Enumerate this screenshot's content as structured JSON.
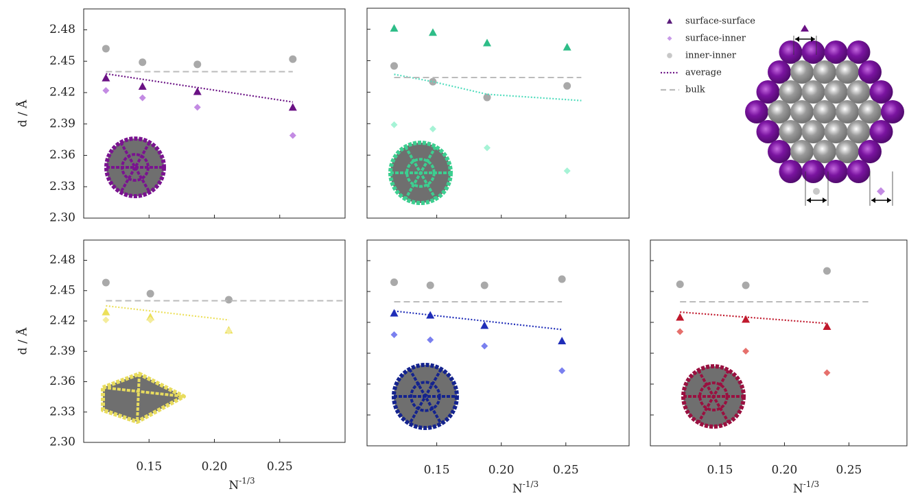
{
  "chart_data": [
    {
      "type": "scatter",
      "ylabel": "d / Å",
      "show_ytick_labels": true,
      "show_xtick_labels": false,
      "xlim": [
        0.1,
        0.3
      ],
      "ylim": [
        2.3,
        2.5
      ],
      "xticks": [
        0.15,
        {
          "value": 0.2,
          "label": "0.20"
        },
        0.25
      ],
      "yticks": [
        {
          "value": 2.3,
          "label": "2.30"
        },
        2.33,
        2.36,
        2.39,
        2.42,
        2.45,
        2.48
      ],
      "x": [
        0.117,
        0.145,
        0.187,
        0.26
      ],
      "series": [
        {
          "name": "surface-surface",
          "color": "#6a1184",
          "marker": "triangle",
          "values": [
            2.434,
            2.426,
            2.421,
            2.406
          ]
        },
        {
          "name": "surface-inner",
          "color": "#c38be3",
          "marker": "diamond",
          "values": [
            2.422,
            2.415,
            2.406,
            2.379
          ]
        },
        {
          "name": "inner-inner",
          "color": "#a9a9a9",
          "marker": "circle",
          "values": [
            2.462,
            2.449,
            2.447,
            2.452
          ]
        },
        {
          "name": "average",
          "color": "#6a1184",
          "marker": "dotted",
          "x": [
            0.117,
            0.26
          ],
          "values": [
            2.438,
            2.411
          ]
        },
        {
          "name": "bulk",
          "color": "#bbbbbb",
          "marker": "dashed",
          "x": [
            0.117,
            0.26
          ],
          "values": [
            2.44,
            2.44
          ]
        }
      ]
    },
    {
      "type": "scatter",
      "show_ytick_labels": false,
      "show_xtick_labels": false,
      "xlim": [
        0.096,
        0.299
      ],
      "ylim": [
        2.3,
        2.5
      ],
      "xticks": [
        0.15,
        {
          "value": 0.2,
          "label": "0.20"
        },
        0.25
      ],
      "yticks": [
        {
          "value": 2.3,
          "label": "2.30"
        },
        2.33,
        2.36,
        2.39,
        2.42,
        2.45,
        2.48
      ],
      "x": [
        0.117,
        0.147,
        0.189,
        0.251
      ],
      "series": [
        {
          "name": "surface-surface",
          "color": "#2ebd88",
          "marker": "triangle",
          "values": [
            2.481,
            2.477,
            2.467,
            2.463
          ]
        },
        {
          "name": "surface-inner",
          "color": "#a6f3d6",
          "marker": "diamond",
          "values": [
            2.389,
            2.385,
            2.367,
            2.345
          ]
        },
        {
          "name": "inner-inner",
          "color": "#a9a9a9",
          "marker": "circle",
          "values": [
            2.445,
            2.43,
            2.415,
            2.426
          ]
        },
        {
          "name": "average",
          "color": "#4fdcbc",
          "marker": "dotted",
          "x": [
            0.117,
            0.147,
            0.189,
            0.262
          ],
          "values": [
            2.437,
            2.43,
            2.418,
            2.412
          ]
        },
        {
          "name": "bulk",
          "color": "#bbbbbb",
          "marker": "dashed",
          "x": [
            0.117,
            0.262
          ],
          "values": [
            2.434,
            2.434
          ]
        }
      ]
    },
    {
      "type": "scatter",
      "ylabel": "d / Å",
      "xlabel": "N",
      "xlabel_sup": "-1/3",
      "show_ytick_labels": true,
      "show_xtick_labels": true,
      "xlim": [
        0.1,
        0.3
      ],
      "ylim": [
        2.3,
        2.5
      ],
      "xticks": [
        0.15,
        {
          "value": 0.2,
          "label": "0.20"
        },
        0.25
      ],
      "yticks": [
        {
          "value": 2.3,
          "label": "2.30"
        },
        2.33,
        2.36,
        2.39,
        2.42,
        2.45,
        2.48
      ],
      "x": [
        0.117,
        0.151,
        0.211
      ],
      "series": [
        {
          "name": "surface-surface",
          "color": "#ece05a",
          "marker": "triangle",
          "values": [
            2.429,
            2.424,
            2.411
          ]
        },
        {
          "name": "surface-inner",
          "color": "#f4ec9c",
          "marker": "diamond",
          "values": [
            2.421,
            2.421,
            2.41
          ]
        },
        {
          "name": "inner-inner",
          "color": "#a9a9a9",
          "marker": "circle",
          "values": [
            2.458,
            2.447,
            2.441
          ]
        },
        {
          "name": "average",
          "color": "#ece05a",
          "marker": "dotted",
          "x": [
            0.117,
            0.211
          ],
          "values": [
            2.435,
            2.421
          ]
        },
        {
          "name": "bulk",
          "color": "#bbbbbb",
          "marker": "dashed",
          "x": [
            0.117,
            0.3
          ],
          "values": [
            2.44,
            2.44
          ]
        }
      ]
    },
    {
      "type": "scatter",
      "xlabel": "N",
      "xlabel_sup": "-1/3",
      "show_ytick_labels": false,
      "show_xtick_labels": true,
      "xlim": [
        0.096,
        0.299
      ],
      "ylim": [
        2.3,
        2.5
      ],
      "xticks": [
        0.15,
        {
          "value": 0.2,
          "label": "0.20"
        },
        0.25
      ],
      "yticks": [
        {
          "value": 2.3,
          "label": "2.30"
        },
        2.33,
        2.36,
        2.39,
        2.42,
        2.45,
        2.48
      ],
      "x": [
        0.117,
        0.145,
        0.187,
        0.247
      ],
      "series": [
        {
          "name": "surface-surface",
          "color": "#1f2db8",
          "marker": "triangle",
          "values": [
            2.429,
            2.427,
            2.417,
            2.402
          ]
        },
        {
          "name": "surface-inner",
          "color": "#7a80ef",
          "marker": "diamond",
          "values": [
            2.408,
            2.403,
            2.397,
            2.373
          ]
        },
        {
          "name": "inner-inner",
          "color": "#a9a9a9",
          "marker": "circle",
          "values": [
            2.459,
            2.456,
            2.456,
            2.462
          ]
        },
        {
          "name": "average",
          "color": "#1f2db8",
          "marker": "dotted",
          "x": [
            0.117,
            0.247
          ],
          "values": [
            2.431,
            2.413
          ]
        },
        {
          "name": "bulk",
          "color": "#bbbbbb",
          "marker": "dashed",
          "x": [
            0.117,
            0.247
          ],
          "values": [
            2.44,
            2.44
          ]
        }
      ]
    },
    {
      "type": "scatter",
      "xlabel": "N",
      "xlabel_sup": "-1/3",
      "show_ytick_labels": false,
      "show_xtick_labels": true,
      "xlim": [
        0.096,
        0.295
      ],
      "ylim": [
        2.3,
        2.5
      ],
      "xticks": [
        0.15,
        {
          "value": 0.2,
          "label": "0.20"
        },
        0.25
      ],
      "yticks": [
        {
          "value": 2.3,
          "label": "2.30"
        },
        2.33,
        2.36,
        2.39,
        2.42,
        2.45,
        2.48
      ],
      "x": [
        0.119,
        0.17,
        0.233
      ],
      "series": [
        {
          "name": "surface-surface",
          "color": "#c0182c",
          "marker": "triangle",
          "values": [
            2.425,
            2.423,
            2.416
          ]
        },
        {
          "name": "surface-inner",
          "color": "#e6706c",
          "marker": "diamond",
          "values": [
            2.411,
            2.392,
            2.371
          ]
        },
        {
          "name": "inner-inner",
          "color": "#a9a9a9",
          "marker": "circle",
          "values": [
            2.457,
            2.456,
            2.47
          ]
        },
        {
          "name": "average",
          "color": "#c0182c",
          "marker": "dotted",
          "x": [
            0.119,
            0.233
          ],
          "values": [
            2.43,
            2.419
          ]
        },
        {
          "name": "bulk",
          "color": "#bbbbbb",
          "marker": "dashed",
          "x": [
            0.119,
            0.265
          ],
          "values": [
            2.44,
            2.44
          ]
        }
      ]
    }
  ]
}
